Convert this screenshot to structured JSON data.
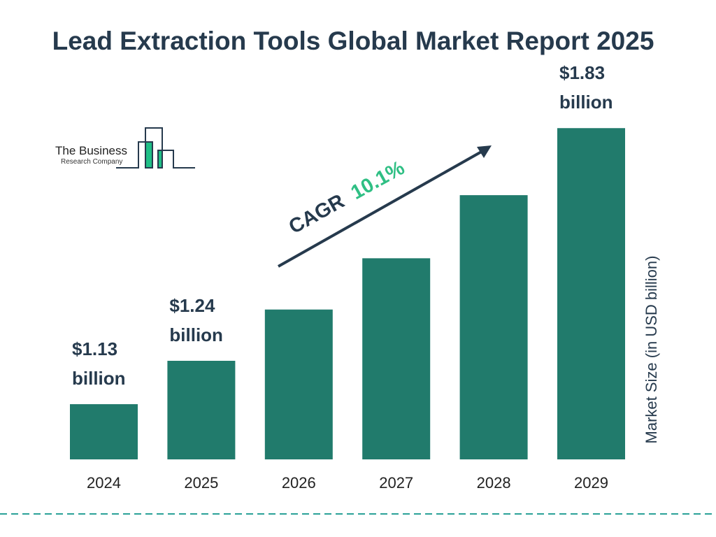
{
  "chart_data": {
    "type": "bar",
    "title": "Lead Extraction Tools Global Market Report 2025",
    "categories": [
      "2024",
      "2025",
      "2026",
      "2027",
      "2028",
      "2029"
    ],
    "values": [
      1.13,
      1.24,
      1.37,
      1.5,
      1.66,
      1.83
    ],
    "data_labels": [
      {
        "index": 0,
        "line1": "$1.13",
        "line2": "billion"
      },
      {
        "index": 1,
        "line1": "$1.24",
        "line2": "billion"
      },
      {
        "index": 5,
        "line1": "$1.83",
        "line2": "billion"
      }
    ],
    "ylabel": "Market Size (in USD billion)",
    "annotation": {
      "prefix": "CAGR",
      "value": "10.1%"
    },
    "grid": false,
    "colors": {
      "bar": "#217b6c",
      "text": "#263a4d",
      "cagr": "#2fbf84",
      "logo_accent": "#1fbf86",
      "dashed_line": "#2aa198"
    }
  },
  "logo": {
    "line1": "The Business",
    "line2": "Research Company"
  }
}
